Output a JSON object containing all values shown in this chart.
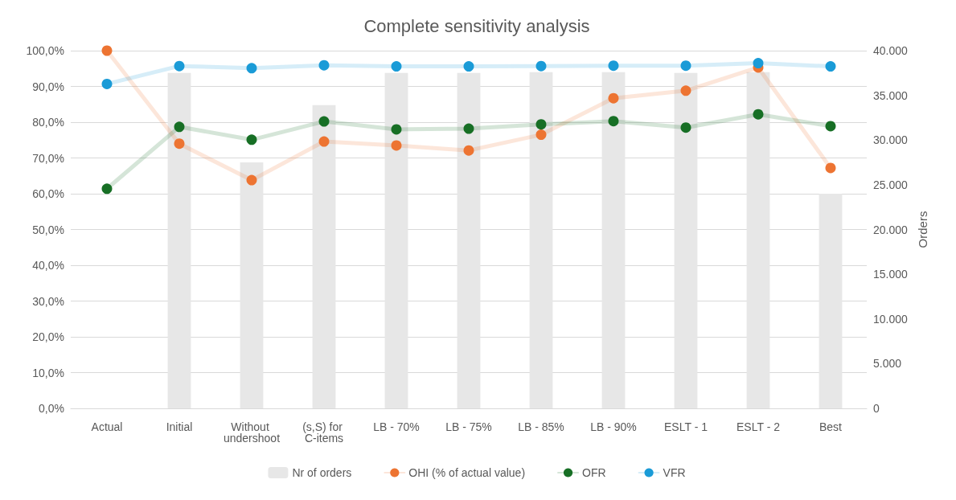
{
  "chart_data": {
    "type": "line",
    "title": "Complete sensitivity analysis",
    "y2label": "Orders",
    "categories": [
      "Actual",
      "Initial",
      "Without undershoot",
      "(s,S) for C-items",
      "LB - 70%",
      "LB - 75%",
      "LB - 85%",
      "LB - 90%",
      "ESLT - 1",
      "ESLT - 2",
      "Best"
    ],
    "series": [
      {
        "name": "Nr of orders",
        "type": "bar",
        "axis": "y2",
        "color": "#e7e7e7",
        "values": [
          null,
          37500,
          27500,
          33900,
          37500,
          37500,
          37600,
          37600,
          37500,
          37600,
          24000
        ]
      },
      {
        "name": "OHI (% of actual value)",
        "color": "#ed7432",
        "values": [
          100,
          74.0,
          63.8,
          74.6,
          73.5,
          72.1,
          76.5,
          86.7,
          88.8,
          95.3,
          67.2
        ]
      },
      {
        "name": "OFR",
        "color": "#176f25",
        "values": [
          61.4,
          78.7,
          75.1,
          80.2,
          78.0,
          78.2,
          79.4,
          80.3,
          78.5,
          82.2,
          78.9
        ]
      },
      {
        "name": "VFR",
        "color": "#1a9bd7",
        "values": [
          90.7,
          95.7,
          95.1,
          95.9,
          95.6,
          95.6,
          95.7,
          95.8,
          95.8,
          96.5,
          95.6
        ]
      }
    ],
    "ylim": [
      0,
      100
    ],
    "yticks": [
      {
        "value": 0,
        "label": "0,0%"
      },
      {
        "value": 10,
        "label": "10,0%"
      },
      {
        "value": 20,
        "label": "20,0%"
      },
      {
        "value": 30,
        "label": "30,0%"
      },
      {
        "value": 40,
        "label": "40,0%"
      },
      {
        "value": 50,
        "label": "50,0%"
      },
      {
        "value": 60,
        "label": "60,0%"
      },
      {
        "value": 70,
        "label": "70,0%"
      },
      {
        "value": 80,
        "label": "80,0%"
      },
      {
        "value": 90,
        "label": "90,0%"
      },
      {
        "value": 100,
        "label": "100,0%"
      }
    ],
    "y2lim": [
      0,
      40000
    ],
    "y2ticks": [
      0,
      {
        "value": 5000,
        "label": "5.000"
      },
      {
        "value": 10000,
        "label": "10.000"
      },
      {
        "value": 15000,
        "label": "15.000"
      },
      {
        "value": 20000,
        "label": "20.000"
      },
      {
        "value": 25000,
        "label": "25.000"
      },
      {
        "value": 30000,
        "label": "30.000"
      },
      {
        "value": 35000,
        "label": "35.000"
      },
      {
        "value": 40000,
        "label": "40.000"
      }
    ],
    "grid": "y",
    "legend": "bottom",
    "marker": "circle",
    "line_style": "solid"
  }
}
